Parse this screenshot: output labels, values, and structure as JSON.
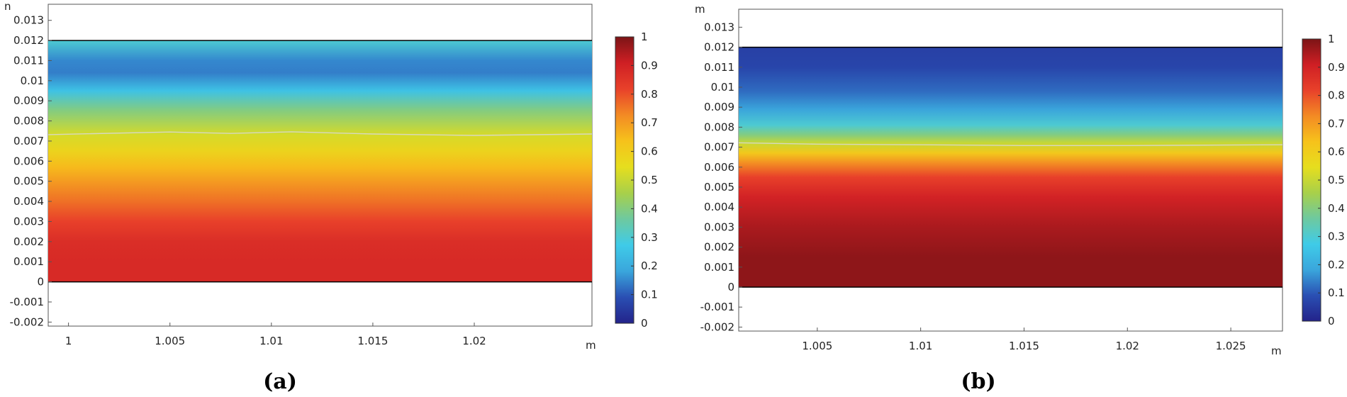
{
  "chart_data": [
    {
      "type": "heatmap",
      "panel_label": "(a)",
      "title": "",
      "x_unit": "m",
      "y_unit": "m",
      "y_unit_display": "n",
      "xlim": [
        0.999,
        1.0258
      ],
      "ylim": [
        -0.0022,
        0.0138
      ],
      "xticks": [
        1,
        1.005,
        1.01,
        1.015,
        1.02
      ],
      "xtick_labels": [
        "1",
        "1.005",
        "1.01",
        "1.015",
        "1.02"
      ],
      "yticks": [
        -0.002,
        -0.001,
        0,
        0.001,
        0.002,
        0.003,
        0.004,
        0.005,
        0.006,
        0.007,
        0.008,
        0.009,
        0.01,
        0.011,
        0.012,
        0.013
      ],
      "ytick_labels": [
        "-0.002",
        "-0.001",
        "0",
        "0.001",
        "0.002",
        "0.003",
        "0.004",
        "0.005",
        "0.006",
        "0.007",
        "0.008",
        "0.009",
        "0.01",
        "0.011",
        "0.012",
        "0.013"
      ],
      "domain": {
        "x": [
          0.999,
          1.0258
        ],
        "y": [
          0,
          0.012
        ]
      },
      "colorbar": {
        "range": [
          0,
          1
        ],
        "ticks": [
          0,
          0.1,
          0.2,
          0.3,
          0.4,
          0.5,
          0.6,
          0.7,
          0.8,
          0.9,
          1
        ],
        "tick_labels": [
          "0",
          "0.1",
          "0.2",
          "0.3",
          "0.4",
          "0.5",
          "0.6",
          "0.7",
          "0.8",
          "0.9",
          "1"
        ],
        "colormap": [
          "#23238a",
          "#2a4fb3",
          "#3aa6dc",
          "#3fcbe8",
          "#6ec9a0",
          "#a8d04a",
          "#e6de1e",
          "#f6c21b",
          "#f38a24",
          "#e8412a",
          "#cf1f24",
          "#7c1416"
        ]
      },
      "value_profile": [
        {
          "y": 0.012,
          "value": 0.3
        },
        {
          "y": 0.011,
          "value": 0.15
        },
        {
          "y": 0.0104,
          "value": 0.14
        },
        {
          "y": 0.0095,
          "value": 0.25
        },
        {
          "y": 0.0085,
          "value": 0.4
        },
        {
          "y": 0.0073,
          "value": 0.52
        },
        {
          "y": 0.0065,
          "value": 0.58
        },
        {
          "y": 0.0057,
          "value": 0.65
        },
        {
          "y": 0.005,
          "value": 0.7
        },
        {
          "y": 0.004,
          "value": 0.76
        },
        {
          "y": 0.003,
          "value": 0.82
        },
        {
          "y": 0.002,
          "value": 0.87
        },
        {
          "y": 0.001,
          "value": 0.88
        },
        {
          "y": 0,
          "value": 0.88
        }
      ],
      "interface_line_y": [
        {
          "x": 0.999,
          "y": 0.00732
        },
        {
          "x": 1.005,
          "y": 0.00745
        },
        {
          "x": 1.008,
          "y": 0.00738
        },
        {
          "x": 1.011,
          "y": 0.00746
        },
        {
          "x": 1.015,
          "y": 0.00735
        },
        {
          "x": 1.02,
          "y": 0.00728
        },
        {
          "x": 1.0258,
          "y": 0.00735
        }
      ]
    },
    {
      "type": "heatmap",
      "panel_label": "(b)",
      "title": "",
      "x_unit": "m",
      "y_unit": "m",
      "y_unit_display": "m",
      "xlim": [
        1.0012,
        1.0275
      ],
      "ylim": [
        -0.0022,
        0.0139
      ],
      "xticks": [
        1.005,
        1.01,
        1.015,
        1.02,
        1.025
      ],
      "xtick_labels": [
        "1.005",
        "1.01",
        "1.015",
        "1.02",
        "1.025"
      ],
      "yticks": [
        -0.002,
        -0.001,
        0,
        0.001,
        0.002,
        0.003,
        0.004,
        0.005,
        0.006,
        0.007,
        0.008,
        0.009,
        0.01,
        0.011,
        0.012,
        0.013
      ],
      "ytick_labels": [
        "-0.002",
        "-0.001",
        "0",
        "0.001",
        "0.002",
        "0.003",
        "0.004",
        "0.005",
        "0.006",
        "0.007",
        "0.008",
        "0.009",
        "0.01",
        "0.011",
        "0.012",
        "0.013"
      ],
      "domain": {
        "x": [
          1.0012,
          1.0275
        ],
        "y": [
          0,
          0.012
        ]
      },
      "colorbar": {
        "range": [
          0,
          1
        ],
        "ticks": [
          0,
          0.1,
          0.2,
          0.3,
          0.4,
          0.5,
          0.6,
          0.7,
          0.8,
          0.9,
          1
        ],
        "tick_labels": [
          "0",
          "0.1",
          "0.2",
          "0.3",
          "0.4",
          "0.5",
          "0.6",
          "0.7",
          "0.8",
          "0.9",
          "1"
        ],
        "colormap": [
          "#23238a",
          "#2a4fb3",
          "#3aa6dc",
          "#3fcbe8",
          "#6ec9a0",
          "#a8d04a",
          "#e6de1e",
          "#f6c21b",
          "#f38a24",
          "#e8412a",
          "#cf1f24",
          "#7c1416"
        ]
      },
      "value_profile": [
        {
          "y": 0.012,
          "value": 0.06
        },
        {
          "y": 0.011,
          "value": 0.07
        },
        {
          "y": 0.0098,
          "value": 0.12
        },
        {
          "y": 0.0089,
          "value": 0.18
        },
        {
          "y": 0.0081,
          "value": 0.3
        },
        {
          "y": 0.0076,
          "value": 0.4
        },
        {
          "y": 0.0072,
          "value": 0.5
        },
        {
          "y": 0.0067,
          "value": 0.62
        },
        {
          "y": 0.0062,
          "value": 0.72
        },
        {
          "y": 0.0055,
          "value": 0.82
        },
        {
          "y": 0.0045,
          "value": 0.9
        },
        {
          "y": 0.003,
          "value": 0.95
        },
        {
          "y": 0.0015,
          "value": 0.98
        },
        {
          "y": 0,
          "value": 0.98
        }
      ],
      "interface_line_y": [
        {
          "x": 1.0012,
          "y": 0.00722
        },
        {
          "x": 1.005,
          "y": 0.00715
        },
        {
          "x": 1.01,
          "y": 0.00712
        },
        {
          "x": 1.015,
          "y": 0.00708
        },
        {
          "x": 1.02,
          "y": 0.00708
        },
        {
          "x": 1.0275,
          "y": 0.00712
        }
      ]
    }
  ]
}
